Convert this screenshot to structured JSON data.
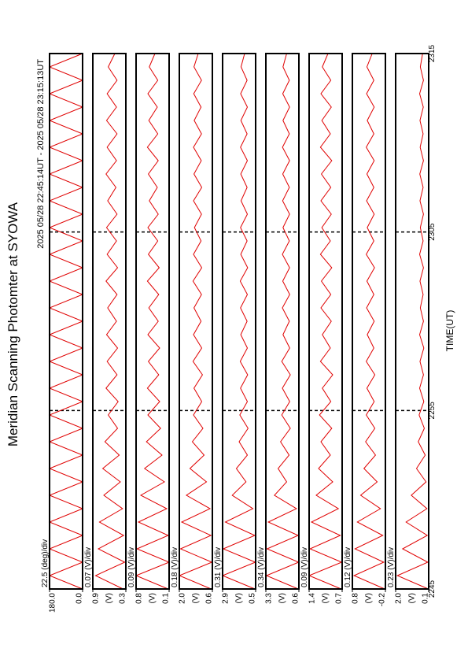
{
  "chart_data": {
    "type": "line",
    "title": "Meridian Scanning Photomter at SYOWA",
    "subtitle": "2025 05/28 22:45:14UT - 2025 05/28 23:15:13UT",
    "xlabel": "TIME(UT)",
    "xlim": [
      0,
      30
    ],
    "xticks": [
      {
        "value": 0,
        "label": "2245"
      },
      {
        "value": 10,
        "label": "2255"
      },
      {
        "value": 20,
        "label": "2305"
      },
      {
        "value": 30,
        "label": "2315"
      }
    ],
    "x": [
      0,
      0.75,
      1.5,
      2.25,
      3,
      3.75,
      4.5,
      5.25,
      6,
      6.75,
      7.5,
      8.25,
      9,
      9.75,
      10.5,
      11.25,
      12,
      12.75,
      13.5,
      14.25,
      15,
      15.75,
      16.5,
      17.25,
      18,
      18.75,
      19.5,
      20.25,
      21,
      21.75,
      22.5,
      23.25,
      24,
      24.75,
      25.5,
      26.25,
      27,
      27.75,
      28.5,
      29.25,
      30
    ],
    "panels": [
      {
        "scale_label": "22.5 (deg)/div",
        "ylim": [
          0,
          180
        ],
        "yticks": [
          {
            "value": 0,
            "label": "0.0"
          },
          {
            "value": 180,
            "label": "180.0"
          }
        ],
        "color": "#e00000",
        "values": [
          0,
          180,
          0,
          180,
          0,
          180,
          0,
          180,
          0,
          180,
          0,
          180,
          0,
          180,
          0,
          180,
          0,
          180,
          0,
          180,
          0,
          180,
          0,
          180,
          0,
          180,
          0,
          180,
          0,
          180,
          0,
          180,
          0,
          180,
          0,
          180,
          0,
          180,
          0,
          180,
          0
        ]
      },
      {
        "scale_label": "0.07 (V)/div",
        "unit": "(V)",
        "ylim": [
          0.3,
          0.9
        ],
        "yticks": [
          0.3,
          0.9
        ],
        "color": "#e00000",
        "values": [
          0.35,
          0.85,
          0.32,
          0.8,
          0.34,
          0.78,
          0.36,
          0.7,
          0.4,
          0.72,
          0.42,
          0.68,
          0.45,
          0.62,
          0.44,
          0.66,
          0.46,
          0.64,
          0.45,
          0.65,
          0.47,
          0.63,
          0.46,
          0.66,
          0.45,
          0.64,
          0.47,
          0.65,
          0.46,
          0.63,
          0.48,
          0.66,
          0.47,
          0.64,
          0.46,
          0.65,
          0.47,
          0.64,
          0.46,
          0.62,
          0.5
        ]
      },
      {
        "scale_label": "0.09 (V)/div",
        "unit": "(V)",
        "ylim": [
          0.1,
          0.8
        ],
        "yticks": [
          0.1,
          0.8
        ],
        "color": "#e00000",
        "values": [
          0.12,
          0.8,
          0.1,
          0.78,
          0.12,
          0.75,
          0.15,
          0.7,
          0.2,
          0.62,
          0.25,
          0.58,
          0.28,
          0.55,
          0.3,
          0.56,
          0.32,
          0.54,
          0.3,
          0.55,
          0.33,
          0.53,
          0.32,
          0.56,
          0.31,
          0.54,
          0.34,
          0.55,
          0.33,
          0.52,
          0.35,
          0.54,
          0.33,
          0.56,
          0.34,
          0.53,
          0.35,
          0.55,
          0.34,
          0.52,
          0.4
        ]
      },
      {
        "scale_label": "0.18 (V)/div",
        "unit": "(V)",
        "ylim": [
          0.6,
          2.0
        ],
        "yticks": [
          0.6,
          {
            "value": 2.0,
            "label": "2.0"
          }
        ],
        "color": "#e00000",
        "values": [
          0.65,
          2.0,
          0.62,
          1.95,
          0.66,
          1.9,
          0.7,
          1.7,
          0.85,
          1.55,
          0.95,
          1.45,
          1.0,
          1.4,
          1.05,
          1.38,
          1.02,
          1.42,
          1.05,
          1.4,
          1.08,
          1.38,
          1.06,
          1.42,
          1.05,
          1.4,
          1.08,
          1.36,
          1.06,
          1.4,
          1.05,
          1.38,
          1.07,
          1.4,
          1.06,
          1.37,
          1.08,
          1.39,
          1.06,
          1.38,
          1.2
        ]
      },
      {
        "scale_label": "0.31 (V)/div",
        "unit": "(V)",
        "ylim": [
          0.5,
          2.9
        ],
        "yticks": [
          0.5,
          2.9
        ],
        "color": "#e00000",
        "values": [
          0.55,
          2.9,
          0.52,
          2.85,
          0.56,
          2.7,
          0.7,
          2.2,
          1.2,
          1.9,
          1.1,
          1.7,
          1.05,
          1.65,
          1.1,
          1.6,
          1.08,
          1.62,
          1.1,
          1.58,
          1.12,
          1.6,
          1.1,
          1.62,
          1.08,
          1.58,
          1.12,
          1.6,
          1.1,
          1.56,
          1.12,
          1.58,
          1.1,
          1.6,
          1.12,
          1.57,
          1.1,
          1.59,
          1.12,
          1.56,
          1.3
        ]
      },
      {
        "scale_label": "0.34 (V)/div",
        "unit": "(V)",
        "ylim": [
          0.6,
          3.3
        ],
        "yticks": [
          0.6,
          3.3
        ],
        "color": "#e00000",
        "values": [
          0.65,
          3.25,
          0.62,
          3.2,
          0.66,
          3.1,
          0.8,
          2.6,
          1.6,
          2.3,
          1.4,
          2.1,
          1.3,
          2.0,
          1.35,
          1.95,
          1.3,
          2.0,
          1.35,
          1.9,
          1.38,
          1.95,
          1.35,
          1.92,
          1.36,
          1.95,
          1.38,
          1.9,
          1.36,
          1.93,
          1.38,
          1.92,
          1.36,
          1.94,
          1.38,
          1.9,
          1.36,
          1.92,
          1.38,
          1.9,
          1.6
        ]
      },
      {
        "scale_label": "0.09 (V)/div",
        "unit": "(V)",
        "ylim": [
          0.7,
          1.4
        ],
        "yticks": [
          0.7,
          1.4
        ],
        "color": "#e00000",
        "values": [
          0.72,
          1.4,
          0.71,
          1.38,
          0.74,
          1.35,
          0.78,
          1.25,
          0.9,
          1.2,
          0.95,
          1.15,
          0.92,
          1.18,
          0.94,
          1.12,
          0.9,
          1.16,
          0.95,
          1.12,
          0.93,
          1.15,
          0.94,
          1.14,
          0.92,
          1.16,
          0.95,
          1.13,
          0.93,
          1.15,
          0.94,
          1.14,
          0.92,
          1.16,
          0.95,
          1.13,
          0.93,
          1.15,
          0.94,
          1.12,
          1.0
        ]
      },
      {
        "scale_label": "0.12 (V)/div",
        "unit": "(V)",
        "ylim": [
          -0.2,
          0.8
        ],
        "yticks": [
          -0.2,
          0.8
        ],
        "color": "#e00000",
        "values": [
          -0.18,
          0.75,
          -0.15,
          0.72,
          -0.12,
          0.65,
          -0.05,
          0.55,
          0.05,
          0.45,
          0.1,
          0.4,
          0.12,
          0.38,
          0.14,
          0.36,
          0.12,
          0.38,
          0.15,
          0.35,
          0.14,
          0.37,
          0.15,
          0.36,
          0.13,
          0.38,
          0.15,
          0.35,
          0.14,
          0.37,
          0.15,
          0.36,
          0.14,
          0.38,
          0.15,
          0.35,
          0.14,
          0.37,
          0.15,
          0.36,
          0.2
        ]
      },
      {
        "scale_label": "0.23 (V)/div",
        "unit": "(V)",
        "ylim": [
          0.1,
          2.0
        ],
        "yticks": [
          0.1,
          {
            "value": 2.0,
            "label": "2.0"
          }
        ],
        "color": "#e00000",
        "values": [
          0.12,
          1.9,
          0.15,
          1.6,
          0.18,
          1.4,
          0.2,
          1.1,
          0.25,
          0.8,
          0.3,
          0.7,
          0.35,
          0.65,
          0.38,
          0.62,
          0.4,
          0.6,
          0.38,
          0.62,
          0.4,
          0.58,
          0.42,
          0.6,
          0.4,
          0.62,
          0.42,
          0.58,
          0.4,
          0.6,
          0.42,
          0.61,
          0.4,
          0.59,
          0.42,
          0.6,
          0.41,
          0.62,
          0.4,
          0.58,
          0.45
        ]
      }
    ]
  }
}
